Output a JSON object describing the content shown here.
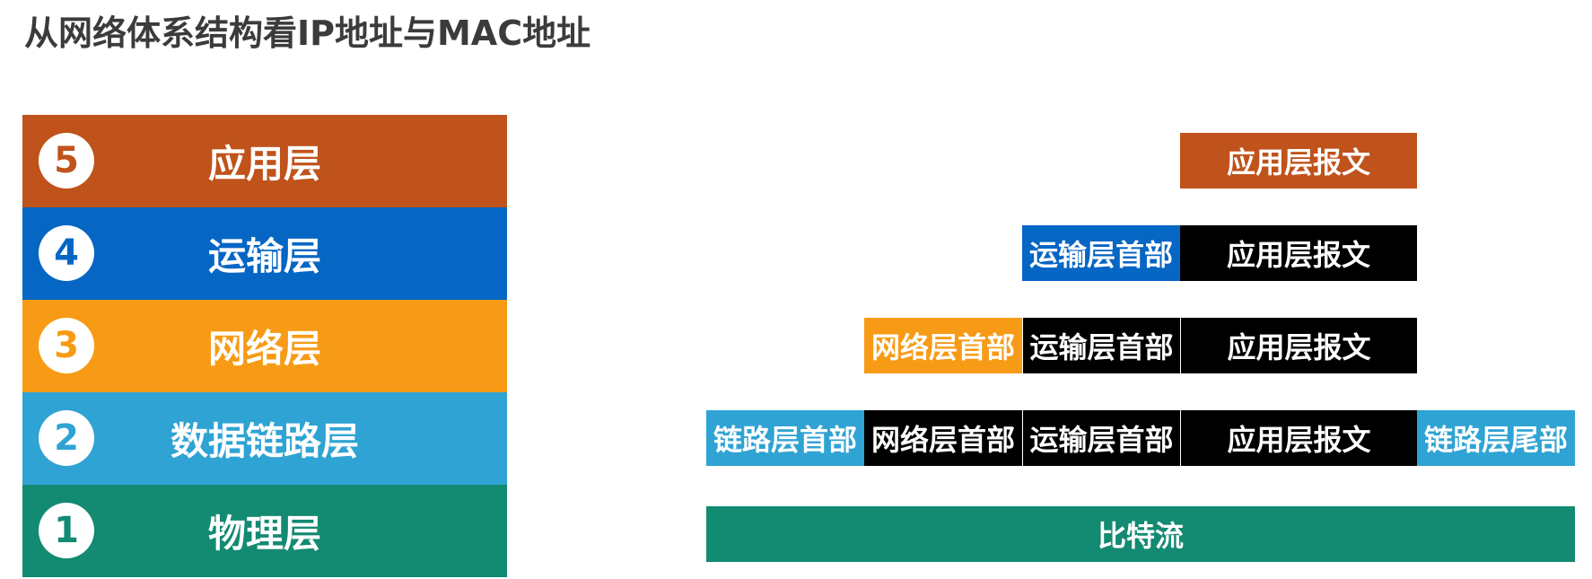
{
  "title": "从网络体系结构看IP地址与MAC地址",
  "colors": {
    "application": "#c0521b",
    "transport": "#0566c4",
    "network": "#f79b16",
    "datalink": "#2fa3d3",
    "physical": "#138a72",
    "black": "#000000"
  },
  "layers": [
    {
      "number": "5",
      "name": "应用层"
    },
    {
      "number": "4",
      "name": "运输层"
    },
    {
      "number": "3",
      "name": "网络层"
    },
    {
      "number": "2",
      "name": "数据链路层"
    },
    {
      "number": "1",
      "name": "物理层"
    }
  ],
  "encapsulation": {
    "application_message": "应用层报文",
    "transport_header": "运输层首部",
    "network_header": "网络层首部",
    "link_header": "链路层首部",
    "link_trailer": "链路层尾部",
    "bitstream": "比特流"
  }
}
